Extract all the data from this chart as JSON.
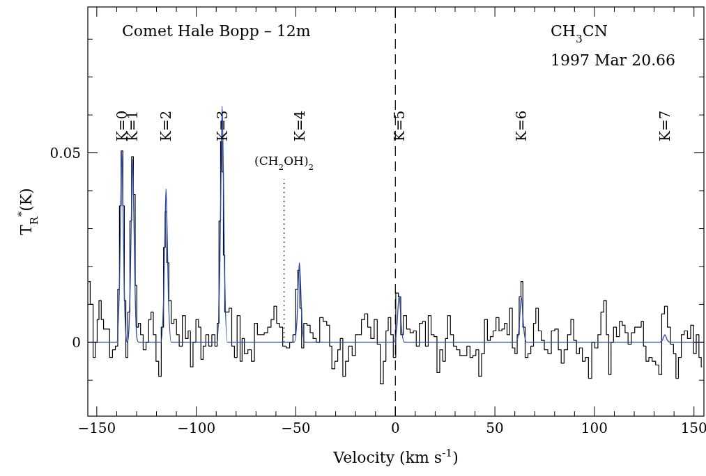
{
  "chart_data": {
    "type": "step",
    "title": "Comet Hale Bopp – 12m",
    "xlabel": "Velocity (km s$^{-1}$)",
    "ylabel": "T$_{R}$$^{*}$(K)",
    "annotations": [
      "CH$_{3}$CN",
      "1997 Mar 20.66",
      "K=0",
      "K=1",
      "K=2",
      "K=3",
      "K=4",
      "K=5",
      "K=6",
      "K=7"
    ],
    "xlim": [
      -154.5,
      155
    ],
    "ylim": [
      -0.0195,
      0.0885
    ],
    "xticks": [
      {
        "value": -150,
        "label": "−150"
      },
      {
        "value": -140,
        "label": null
      },
      {
        "value": -130,
        "label": null
      },
      {
        "value": -120,
        "label": null
      },
      {
        "value": -110,
        "label": null
      },
      {
        "value": -100,
        "label": "−100"
      },
      {
        "value": -90,
        "label": null
      },
      {
        "value": -80,
        "label": null
      },
      {
        "value": -70,
        "label": null
      },
      {
        "value": -60,
        "label": null
      },
      {
        "value": -50,
        "label": "−50"
      },
      {
        "value": -40,
        "label": null
      },
      {
        "value": -30,
        "label": null
      },
      {
        "value": -20,
        "label": null
      },
      {
        "value": -10,
        "label": null
      },
      0,
      {
        "value": 10,
        "label": null
      },
      {
        "value": 20,
        "label": null
      },
      {
        "value": 30,
        "label": null
      },
      {
        "value": 40,
        "label": null
      },
      50,
      {
        "value": 60,
        "label": null
      },
      {
        "value": 70,
        "label": null
      },
      {
        "value": 80,
        "label": null
      },
      {
        "value": 90,
        "label": null
      },
      100,
      {
        "value": 110,
        "label": null
      },
      {
        "value": 120,
        "label": null
      },
      {
        "value": 130,
        "label": null
      },
      {
        "value": 140,
        "label": null
      },
      150
    ],
    "yticks": [
      {
        "value": -0.01,
        "label": null
      },
      0,
      {
        "value": 0.01,
        "label": null
      },
      {
        "value": 0.02,
        "label": null
      },
      {
        "value": 0.03,
        "label": null
      },
      {
        "value": 0.04,
        "label": null
      },
      0.05,
      {
        "value": 0.06,
        "label": null
      },
      {
        "value": 0.07,
        "label": null
      },
      {
        "value": 0.08,
        "label": null
      }
    ],
    "grid": false,
    "marker": "none",
    "ref_lines": [
      {
        "axis": "x",
        "value": 0,
        "line_style": "dashed",
        "color": "#000000"
      },
      {
        "axis": "x",
        "value": -55.9,
        "label": "(CH$_{2}$OH)$_{2}$",
        "line_style": "dotted",
        "color": "#000000"
      }
    ],
    "series": [
      {
        "color": "#000000",
        "x": [
          -154.2,
          -152.4,
          -151.3,
          -150.1,
          -149.5,
          -148.3,
          -147.2,
          -146,
          -144.3,
          -142.8,
          -141.4,
          -139.9,
          -139,
          -138.2,
          -137.3,
          -136.5,
          -135.8,
          -135,
          -133.8,
          -132.9,
          -132.1,
          -131.1,
          -130.3,
          -129.5,
          -128.6,
          -127.4,
          -126,
          -124.5,
          -123.3,
          -122.2,
          -121,
          -119.5,
          -118.3,
          -116.9,
          -116,
          -115.2,
          -114.4,
          -113.2,
          -112,
          -110.5,
          -109.4,
          -107.8,
          -106.2,
          -104.7,
          -103.5,
          -102.4,
          -100.9,
          -99.5,
          -98.3,
          -97.1,
          -96,
          -94.4,
          -93.1,
          -91.3,
          -90,
          -89,
          -88.2,
          -87.4,
          -86.7,
          -86.1,
          -85.3,
          -84.1,
          -83,
          -81.4,
          -80.3,
          -78.7,
          -77.3,
          -76.7,
          -75,
          -73.2,
          -71.5,
          -70.1,
          -68.5,
          -66.8,
          -65,
          -63.3,
          -61.6,
          -60.4,
          -58.9,
          -57.5,
          -55.7,
          -54,
          -52.2,
          -50.7,
          -49.6,
          -48.4,
          -47.5,
          -46.7,
          -45.3,
          -43.5,
          -42.1,
          -40.6,
          -38.9,
          -37.1,
          -35.4,
          -33.6,
          -32.5,
          -31.3,
          -29.5,
          -28.4,
          -27,
          -25.8,
          -24.3,
          -22.6,
          -20.8,
          -19.3,
          -17.9,
          -16.2,
          -14.6,
          -13.2,
          -11.5,
          -9.8,
          -8.4,
          -6.8,
          -5.3,
          -4.2,
          -3,
          -1.6,
          -0.5,
          0.9,
          2.1,
          3.3,
          4.8,
          6.5,
          8.3,
          9.8,
          11.2,
          12.9,
          14.4,
          15.8,
          17.2,
          18.7,
          20.2,
          21.6,
          23,
          24.6,
          25.7,
          26.9,
          28.4,
          30,
          31.5,
          33.3,
          35,
          36.8,
          38.2,
          39.7,
          41.2,
          42.6,
          44,
          45.5,
          47,
          48.4,
          49.8,
          51.3,
          52.8,
          54.2,
          55.4,
          56.8,
          58,
          59.5,
          60.6,
          61.8,
          62.6,
          63.6,
          64.5,
          65.9,
          67.3,
          68.8,
          70,
          71.1,
          72.6,
          74,
          75.7,
          77.5,
          79.2,
          81,
          82.7,
          83.9,
          85.6,
          87.4,
          88.9,
          90.3,
          91.7,
          93.2,
          94.7,
          96.1,
          97.9,
          99.4,
          101,
          102.5,
          104,
          105.4,
          106.6,
          107.8,
          108.9,
          110.3,
          111.8,
          113.3,
          114.7,
          116.1,
          117.7,
          119.4,
          121.1,
          122.9,
          124.1,
          125.2,
          126.6,
          128.1,
          129.9,
          131.6,
          133.1,
          134.5,
          135.9,
          137.4,
          139,
          140.4,
          141.5,
          142.9,
          144.4,
          145.9,
          147.6,
          149.1,
          150.5,
          151.8,
          153.2,
          154.1
        ],
        "values": [
          0.016,
          0.01,
          -0.004,
          0,
          0.006,
          0.011,
          0.006,
          0.0035,
          0.0035,
          -0.004,
          -0.002,
          -0.001,
          0.014,
          0.036,
          0.0505,
          0.036,
          0.011,
          -0.004,
          0.008,
          0.032,
          0.049,
          0.039,
          0.015,
          0.004,
          0.005,
          0.002,
          -0.002,
          0,
          0.006,
          0.008,
          0.002,
          -0.005,
          -0.009,
          0.004,
          0.025,
          0.0345,
          0.021,
          0.011,
          0.005,
          0.006,
          0.002,
          -0.001,
          0.007,
          0.001,
          0.003,
          -0.0065,
          0,
          0.006,
          0.004,
          -0.0045,
          -0.001,
          0.002,
          -0.001,
          0.002,
          -0.001,
          0.005,
          0.032,
          0.053,
          0.045,
          0.023,
          0.008,
          0.008,
          0.009,
          -0.001,
          -0.004,
          0.007,
          -0.005,
          0.001,
          -0.003,
          -0.002,
          -0.005,
          0.005,
          0.002,
          0.002,
          0.0025,
          0.004,
          0.006,
          0.0095,
          0.005,
          0.004,
          -0.001,
          -0.0015,
          0,
          0.002,
          0.014,
          0.019,
          0.009,
          -0.0015,
          0.005,
          0.0045,
          0.0025,
          0.001,
          0,
          0.0065,
          0.0055,
          0.0045,
          -0.001,
          -0.007,
          -0.005,
          -0.002,
          0.001,
          -0.009,
          -0.005,
          -0.001,
          -0.0035,
          0.002,
          0.002,
          0.006,
          0.0075,
          0.004,
          0.001,
          0.006,
          -0.0005,
          -0.011,
          -0.005,
          0.003,
          0.0065,
          0.002,
          -0.004,
          0.013,
          0.012,
          0.002,
          0.007,
          0.0035,
          0.0025,
          0.003,
          -0.001,
          0.005,
          0.0055,
          -0.001,
          0.007,
          0.002,
          0.0015,
          -0.008,
          -0.002,
          -0.005,
          0.001,
          0.007,
          0.002,
          -0.001,
          -0.002,
          -0.0035,
          -0.0035,
          -0.001,
          -0.004,
          -0.0035,
          -0.002,
          -0.009,
          -0.003,
          0.006,
          0.0005,
          0.0015,
          0.003,
          0.0065,
          0.003,
          0.0035,
          0.005,
          0.002,
          0.009,
          -0.0015,
          -0.003,
          0.002,
          0.012,
          0.016,
          0.004,
          -0.004,
          -0.003,
          -0.001,
          0.005,
          0.009,
          0.003,
          0.0005,
          -0.002,
          -0.003,
          0.003,
          0.0035,
          -0.002,
          -0.0055,
          -0.002,
          0.002,
          0.006,
          0.0005,
          -0.003,
          -0.0015,
          -0.005,
          -0.004,
          -0.0095,
          0,
          -0.0015,
          0.002,
          0.008,
          0.011,
          0.002,
          -0.0085,
          0,
          0.004,
          0.0015,
          0.0055,
          0.0045,
          0.0025,
          -0.0005,
          0.0025,
          0.004,
          0.004,
          0.0055,
          -0.001,
          -0.005,
          -0.004,
          -0.005,
          -0.006,
          -0.0085,
          0.0075,
          0.0095,
          0.004,
          -0.0005,
          -0.003,
          -0.0095,
          -0.004,
          0.002,
          0.003,
          0.001,
          0.0045,
          -0.003,
          0.002,
          -0.004,
          -0.0065
        ]
      },
      {
        "type": "line",
        "color": "#2a48a8",
        "x": [
          -154.5,
          -140,
          -138.6,
          -138,
          -137.4,
          -136.8,
          -136.2,
          -135.2,
          -134.7,
          -134.2,
          -133.2,
          -132.6,
          -132,
          -131.4,
          -130.8,
          -129.8,
          -129,
          -117.8,
          -116.4,
          -115.8,
          -115.2,
          -114.6,
          -114,
          -112.6,
          -89.6,
          -88.2,
          -87.6,
          -87,
          -86.4,
          -85.8,
          -84.4,
          -50.8,
          -49.4,
          -48.8,
          -48.2,
          -47.6,
          -47,
          -45.6,
          -0.7,
          0.7,
          1.3,
          1.9,
          2.5,
          3.1,
          4.5,
          60.7,
          62.1,
          62.7,
          63.3,
          63.9,
          64.5,
          65.9,
          132.8,
          134.2,
          134.8,
          135.4,
          136,
          136.6,
          138,
          155
        ],
        "values": [
          0,
          0,
          0.015,
          0.035,
          0.0505,
          0.035,
          0.015,
          0.001,
          0,
          0.001,
          0.015,
          0.034,
          0.0485,
          0.034,
          0.015,
          0.001,
          0,
          0,
          0.012,
          0.028,
          0.0405,
          0.028,
          0.012,
          0,
          0,
          0.019,
          0.044,
          0.0623,
          0.044,
          0.019,
          0,
          0,
          0.006,
          0.015,
          0.021,
          0.015,
          0.006,
          0,
          0,
          0.0037,
          0.0087,
          0.0123,
          0.0087,
          0.0037,
          0,
          0,
          0.0036,
          0.0085,
          0.012,
          0.0085,
          0.0036,
          0,
          0,
          0.0006,
          0.0014,
          0.002,
          0.0014,
          0.0006,
          0,
          0
        ]
      }
    ]
  }
}
